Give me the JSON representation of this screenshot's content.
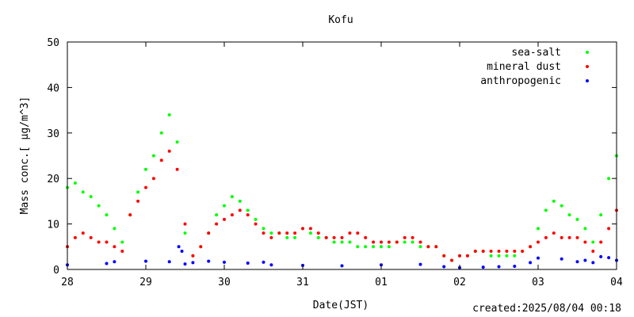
{
  "chart_data": {
    "type": "scatter",
    "title": "Kofu",
    "xlabel": "Date(JST)",
    "ylabel": "Mass conc.[ μg/m^3]",
    "ylim": [
      0,
      50
    ],
    "yticks": [
      0,
      10,
      20,
      30,
      40,
      50
    ],
    "xlim_days": [
      0,
      7
    ],
    "xtick_labels": [
      "28",
      "29",
      "30",
      "31",
      "01",
      "02",
      "03",
      "04"
    ],
    "grid": false,
    "legend_position": "top-right",
    "series": [
      {
        "name": "sea-salt",
        "color": "#00ff00",
        "x": [
          0.0,
          0.1,
          0.2,
          0.3,
          0.4,
          0.5,
          0.6,
          0.7,
          0.8,
          0.9,
          1.0,
          1.1,
          1.2,
          1.3,
          1.4,
          1.5,
          1.6,
          1.7,
          1.8,
          1.9,
          2.0,
          2.1,
          2.2,
          2.3,
          2.4,
          2.5,
          2.6,
          2.7,
          2.8,
          2.9,
          3.0,
          3.1,
          3.2,
          3.3,
          3.4,
          3.5,
          3.6,
          3.7,
          3.8,
          3.9,
          4.0,
          4.1,
          4.2,
          4.3,
          4.4,
          4.5,
          4.6,
          4.7,
          4.8,
          4.9,
          5.0,
          5.1,
          5.2,
          5.3,
          5.4,
          5.5,
          5.6,
          5.7,
          5.8,
          5.9,
          6.0,
          6.1,
          6.2,
          6.3,
          6.4,
          6.5,
          6.6,
          6.7,
          6.8,
          6.9,
          7.0
        ],
        "y": [
          18,
          19,
          17,
          16,
          14,
          12,
          9,
          6,
          12,
          17,
          22,
          25,
          30,
          34,
          28,
          8,
          3,
          5,
          8,
          12,
          14,
          16,
          15,
          13,
          11,
          9,
          8,
          8,
          7,
          7,
          9,
          8,
          7,
          7,
          6,
          6,
          6,
          5,
          5,
          5,
          5,
          5,
          6,
          6,
          6,
          5,
          5,
          5,
          3,
          2,
          3,
          3,
          4,
          4,
          3,
          3,
          3,
          3,
          4,
          5,
          9,
          13,
          15,
          14,
          12,
          11,
          9,
          6,
          12,
          20,
          25
        ]
      },
      {
        "name": "mineral dust",
        "color": "#ff0000",
        "x": [
          0.0,
          0.1,
          0.2,
          0.3,
          0.4,
          0.5,
          0.6,
          0.7,
          0.8,
          0.9,
          1.0,
          1.1,
          1.2,
          1.3,
          1.4,
          1.5,
          1.6,
          1.7,
          1.8,
          1.9,
          2.0,
          2.1,
          2.2,
          2.3,
          2.4,
          2.5,
          2.6,
          2.7,
          2.8,
          2.9,
          3.0,
          3.1,
          3.2,
          3.3,
          3.4,
          3.5,
          3.6,
          3.7,
          3.8,
          3.9,
          4.0,
          4.1,
          4.2,
          4.3,
          4.4,
          4.5,
          4.6,
          4.7,
          4.8,
          4.9,
          5.0,
          5.1,
          5.2,
          5.3,
          5.4,
          5.5,
          5.6,
          5.7,
          5.8,
          5.9,
          6.0,
          6.1,
          6.2,
          6.3,
          6.4,
          6.5,
          6.6,
          6.7,
          6.8,
          6.9,
          7.0
        ],
        "y": [
          5,
          7,
          8,
          7,
          6,
          6,
          5,
          4,
          12,
          15,
          18,
          20,
          24,
          26,
          22,
          10,
          3,
          5,
          8,
          10,
          11,
          12,
          13,
          12,
          10,
          8,
          7,
          8,
          8,
          8,
          9,
          9,
          8,
          7,
          7,
          7,
          8,
          8,
          7,
          6,
          6,
          6,
          6,
          7,
          7,
          6,
          5,
          5,
          3,
          2,
          3,
          3,
          4,
          4,
          4,
          4,
          4,
          4,
          4,
          5,
          6,
          7,
          8,
          7,
          7,
          7,
          6,
          4,
          6,
          9,
          13
        ]
      },
      {
        "name": "anthropogenic",
        "color": "#0000ff",
        "x": [
          0.0,
          0.5,
          0.6,
          1.0,
          1.3,
          1.42,
          1.46,
          1.5,
          1.6,
          1.8,
          2.0,
          2.3,
          2.5,
          2.6,
          3.0,
          3.5,
          4.0,
          4.5,
          4.8,
          5.0,
          5.3,
          5.5,
          5.7,
          5.9,
          6.0,
          6.3,
          6.5,
          6.6,
          6.7,
          6.8,
          6.9,
          7.0
        ],
        "y": [
          1.0,
          1.3,
          1.7,
          1.8,
          1.7,
          5.0,
          4.0,
          1.2,
          1.5,
          1.8,
          1.6,
          1.4,
          1.6,
          1.0,
          0.9,
          0.8,
          1.0,
          1.1,
          0.6,
          0.4,
          0.5,
          0.6,
          0.7,
          1.5,
          2.5,
          2.3,
          1.7,
          2.0,
          1.5,
          2.8,
          2.6,
          2.0
        ]
      }
    ]
  },
  "created": "created:2025/08/04 00:18"
}
